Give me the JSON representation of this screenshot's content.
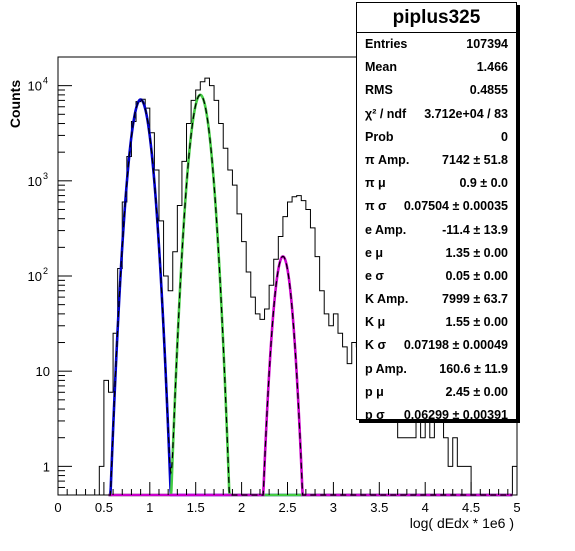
{
  "chart_data": {
    "type": "histogram",
    "title": "",
    "xlabel": "log( dEdx * 1e6 )",
    "ylabel": "Counts",
    "xlim": [
      0,
      5
    ],
    "ylim": [
      0.5,
      20000
    ],
    "yscale": "log",
    "x_ticks": [
      "0",
      "0.5",
      "1",
      "1.5",
      "2",
      "2.5",
      "3",
      "3.5",
      "4",
      "4.5",
      "5"
    ],
    "y_ticks": [
      {
        "value": 1,
        "base": "1",
        "exp": ""
      },
      {
        "value": 10,
        "base": "10",
        "exp": ""
      },
      {
        "value": 100,
        "base": "10",
        "exp": "2"
      },
      {
        "value": 1000,
        "base": "10",
        "exp": "3"
      },
      {
        "value": 10000,
        "base": "10",
        "exp": "4"
      }
    ],
    "histogram": {
      "name": "piplus325",
      "color": "#000000",
      "bins": [
        [
          0.4,
          0
        ],
        [
          0.45,
          1
        ],
        [
          0.5,
          8
        ],
        [
          0.55,
          6
        ],
        [
          0.6,
          25
        ],
        [
          0.65,
          120
        ],
        [
          0.7,
          600
        ],
        [
          0.75,
          1800
        ],
        [
          0.8,
          4200
        ],
        [
          0.85,
          6800
        ],
        [
          0.9,
          7200
        ],
        [
          0.95,
          5800
        ],
        [
          1.0,
          3200
        ],
        [
          1.05,
          1300
        ],
        [
          1.1,
          380
        ],
        [
          1.15,
          100
        ],
        [
          1.2,
          70
        ],
        [
          1.25,
          180
        ],
        [
          1.3,
          550
        ],
        [
          1.35,
          1600
        ],
        [
          1.4,
          4000
        ],
        [
          1.45,
          7000
        ],
        [
          1.5,
          9000
        ],
        [
          1.55,
          11000
        ],
        [
          1.6,
          12000
        ],
        [
          1.65,
          10000
        ],
        [
          1.7,
          7000
        ],
        [
          1.75,
          4000
        ],
        [
          1.8,
          2200
        ],
        [
          1.85,
          1300
        ],
        [
          1.9,
          900
        ],
        [
          1.95,
          450
        ],
        [
          2.0,
          230
        ],
        [
          2.05,
          110
        ],
        [
          2.1,
          60
        ],
        [
          2.15,
          40
        ],
        [
          2.2,
          35
        ],
        [
          2.25,
          45
        ],
        [
          2.3,
          80
        ],
        [
          2.35,
          150
        ],
        [
          2.4,
          260
        ],
        [
          2.45,
          420
        ],
        [
          2.5,
          600
        ],
        [
          2.55,
          680
        ],
        [
          2.6,
          700
        ],
        [
          2.65,
          620
        ],
        [
          2.7,
          500
        ],
        [
          2.75,
          320
        ],
        [
          2.8,
          160
        ],
        [
          2.85,
          70
        ],
        [
          2.9,
          40
        ],
        [
          2.95,
          30
        ],
        [
          3.0,
          40
        ],
        [
          3.05,
          25
        ],
        [
          3.1,
          18
        ],
        [
          3.15,
          12
        ],
        [
          3.2,
          20
        ],
        [
          3.25,
          18
        ],
        [
          3.3,
          25
        ],
        [
          3.35,
          15
        ],
        [
          3.4,
          8
        ],
        [
          3.45,
          6
        ],
        [
          3.5,
          5
        ],
        [
          3.55,
          4
        ],
        [
          3.6,
          3
        ],
        [
          3.65,
          3
        ],
        [
          3.7,
          2
        ],
        [
          3.75,
          2
        ],
        [
          3.8,
          2
        ],
        [
          3.85,
          2
        ],
        [
          3.9,
          3
        ],
        [
          3.95,
          2
        ],
        [
          4.0,
          3
        ],
        [
          4.05,
          2
        ],
        [
          4.1,
          4
        ],
        [
          4.15,
          3
        ],
        [
          4.2,
          2
        ],
        [
          4.25,
          1
        ],
        [
          4.3,
          2
        ],
        [
          4.35,
          1
        ],
        [
          4.4,
          1
        ],
        [
          4.45,
          1
        ],
        [
          4.5,
          0
        ],
        [
          4.55,
          0
        ],
        [
          4.6,
          0
        ],
        [
          4.65,
          0
        ],
        [
          4.7,
          0
        ],
        [
          4.75,
          0
        ],
        [
          4.8,
          0
        ],
        [
          4.85,
          0
        ],
        [
          4.9,
          0
        ],
        [
          4.95,
          1
        ]
      ]
    },
    "fits": [
      {
        "name": "π",
        "amp": 7142,
        "mu": 0.9,
        "sigma": 0.07504,
        "color": "#0000cc"
      },
      {
        "name": "K",
        "amp": 7999,
        "mu": 1.55,
        "sigma": 0.07198,
        "color": "#44cc44"
      },
      {
        "name": "p",
        "amp": 160.6,
        "mu": 2.45,
        "sigma": 0.06299,
        "color": "#cc00cc"
      }
    ],
    "total_fit": {
      "color": "#000000",
      "style": "dashed"
    },
    "grid": false
  },
  "stats": {
    "title": "piplus325",
    "rows": [
      {
        "name": "Entries",
        "value": "107394"
      },
      {
        "name": "Mean",
        "value": "1.466"
      },
      {
        "name": "RMS",
        "value": "0.4855"
      },
      {
        "name": "χ² / ndf",
        "value": "3.712e+04 / 83"
      },
      {
        "name": "Prob",
        "value": "0"
      },
      {
        "name": "π Amp.",
        "value": "7142 ± 51.8"
      },
      {
        "name": "π μ",
        "value": "0.9 ± 0.0"
      },
      {
        "name": "π σ",
        "value": "0.07504 ± 0.00035"
      },
      {
        "name": "e Amp.",
        "value": "-11.4 ± 13.9"
      },
      {
        "name": "e μ",
        "value": "1.35 ± 0.00"
      },
      {
        "name": "e σ",
        "value": "0.05 ± 0.00"
      },
      {
        "name": "K Amp.",
        "value": "7999 ± 63.7"
      },
      {
        "name": "K μ",
        "value": "1.55 ± 0.00"
      },
      {
        "name": "K σ",
        "value": "0.07198 ± 0.00049"
      },
      {
        "name": "p Amp.",
        "value": "160.6 ± 11.9"
      },
      {
        "name": "p μ",
        "value": "2.45 ± 0.00"
      },
      {
        "name": "p σ",
        "value": "0.06299 ± 0.00391"
      }
    ]
  }
}
